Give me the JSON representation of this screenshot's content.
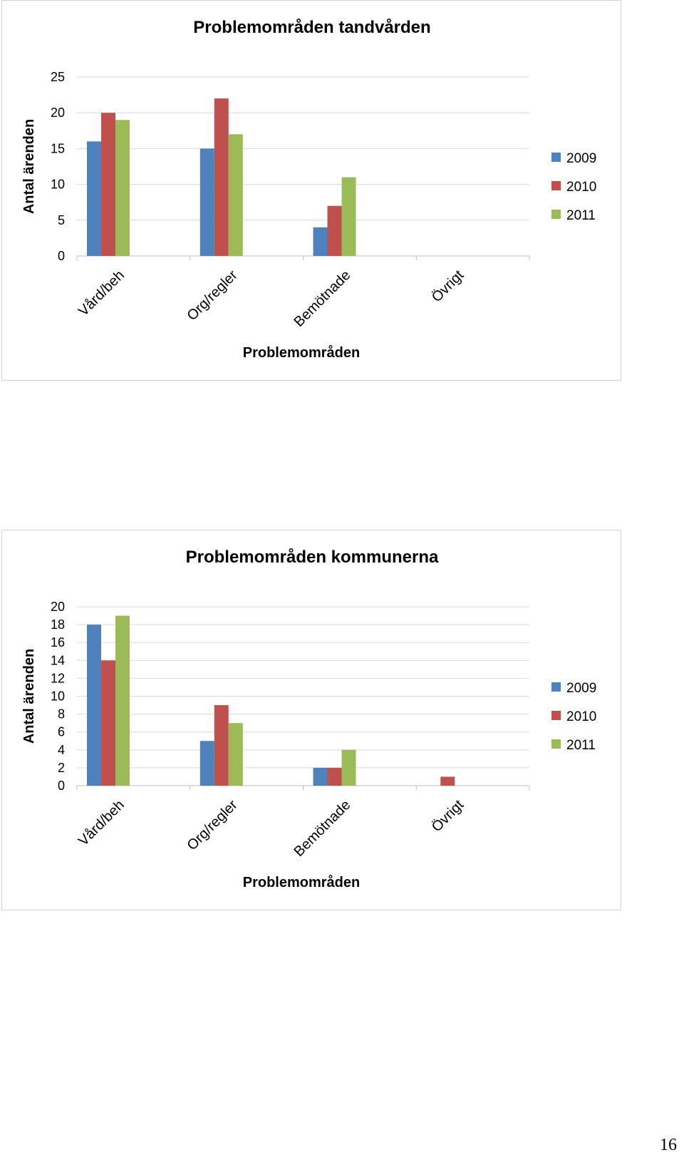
{
  "colors": {
    "2009": "#4f81bd",
    "2010": "#c0504d",
    "2011": "#9bbb59",
    "grid": "#d9d9d9",
    "axis": "#bfbfbf",
    "border": "#d2d2d2"
  },
  "chart_data": [
    {
      "type": "bar",
      "title": "Problemområden tandvården",
      "xlabel": "Problemområden",
      "ylabel": "Antal ärenden",
      "categories": [
        "Vård/beh",
        "Org/regler",
        "Bemötnade",
        "Övrigt"
      ],
      "series": [
        {
          "name": "2009",
          "values": [
            16,
            15,
            4,
            0
          ]
        },
        {
          "name": "2010",
          "values": [
            20,
            22,
            7,
            0
          ]
        },
        {
          "name": "2011",
          "values": [
            19,
            17,
            11,
            0
          ]
        }
      ],
      "ylim": [
        0,
        25
      ],
      "yticks": [
        "0",
        "5",
        "10",
        "15",
        "20",
        "25"
      ],
      "grid": true,
      "legend": "right"
    },
    {
      "type": "bar",
      "title": "Problemområden kommunerna",
      "xlabel": "Problemområden",
      "ylabel": "Antal ärenden",
      "categories": [
        "Vård/beh",
        "Org/regler",
        "Bemötnade",
        "Övrigt"
      ],
      "series": [
        {
          "name": "2009",
          "values": [
            18,
            5,
            2,
            0
          ]
        },
        {
          "name": "2010",
          "values": [
            14,
            9,
            2,
            1
          ]
        },
        {
          "name": "2011",
          "values": [
            19,
            7,
            4,
            0
          ]
        }
      ],
      "ylim": [
        0,
        20
      ],
      "yticks": [
        "0",
        "2",
        "4",
        "6",
        "8",
        "10",
        "12",
        "14",
        "16",
        "18",
        "20"
      ],
      "grid": true,
      "legend": "right"
    }
  ],
  "page": {
    "number": "16"
  }
}
